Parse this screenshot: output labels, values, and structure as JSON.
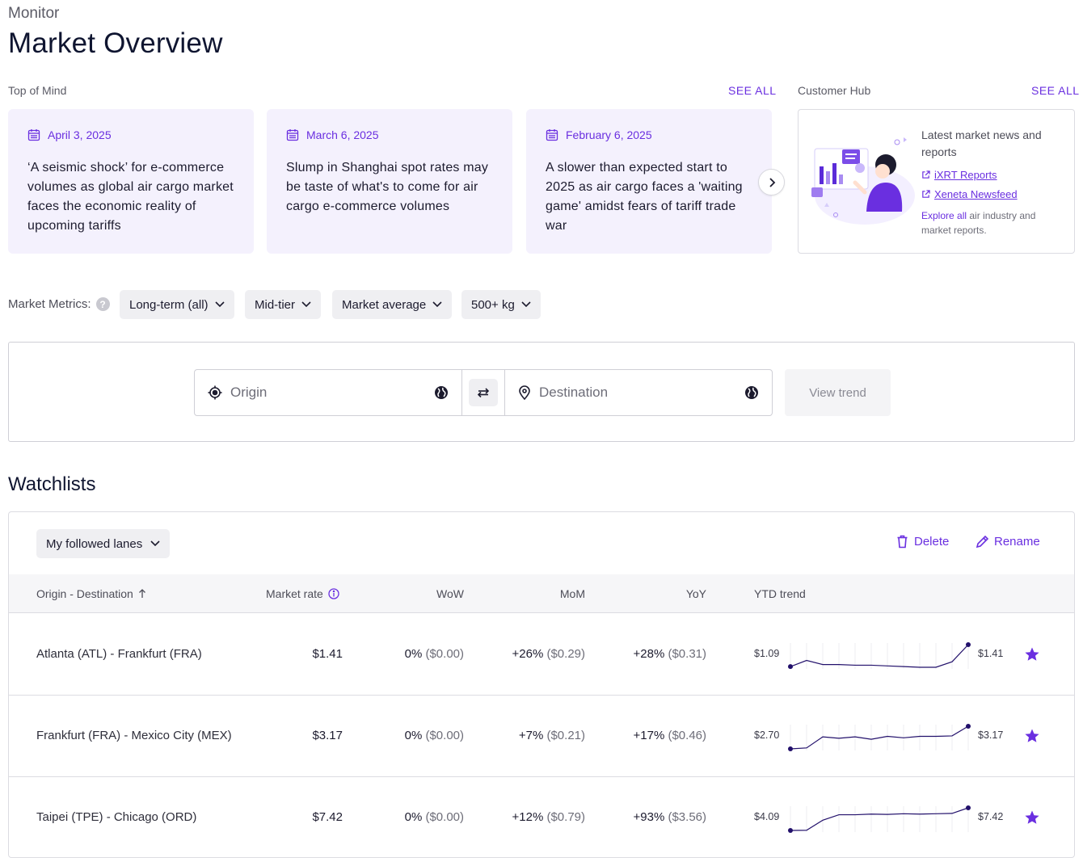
{
  "breadcrumb": "Monitor",
  "title": "Market Overview",
  "top_of_mind": {
    "label": "Top of Mind",
    "see_all": "SEE ALL",
    "cards": [
      {
        "date": "April 3, 2025",
        "text": "‘A seismic shock’ for e-commerce volumes as global air cargo market faces the economic reality of upcoming tariffs"
      },
      {
        "date": "March 6, 2025",
        "text": "Slump in Shanghai spot rates may be taste of what's to come for air cargo e-commerce volumes"
      },
      {
        "date": "February 6, 2025",
        "text": "A slower than expected start to 2025 as air cargo faces a 'waiting game' amidst fears of tariff trade war"
      }
    ]
  },
  "customer_hub": {
    "label": "Customer Hub",
    "see_all": "SEE ALL",
    "heading": "Latest market news and reports",
    "links": [
      "iXRT Reports",
      "Xeneta Newsfeed"
    ],
    "explore_link": "Explore all",
    "explore_rest": " air industry and market reports."
  },
  "metrics": {
    "label": "Market Metrics:",
    "help": "?",
    "filters": [
      "Long-term (all)",
      "Mid-tier",
      "Market average",
      "500+ kg"
    ]
  },
  "search": {
    "origin_placeholder": "Origin",
    "destination_placeholder": "Destination",
    "view_trend": "View trend"
  },
  "watchlists": {
    "title": "Watchlists",
    "selected_list": "My followed lanes",
    "delete_label": "Delete",
    "rename_label": "Rename",
    "columns": [
      "Origin - Destination",
      "Market rate",
      "WoW",
      "MoM",
      "YoY",
      "YTD trend"
    ],
    "rows": [
      {
        "lane": "Atlanta (ATL) - Frankfurt (FRA)",
        "rate": "$1.41",
        "wow": "0%",
        "wow_abs": "($0.00)",
        "mom": "+26%",
        "mom_abs": "($0.29)",
        "yoy": "+28%",
        "yoy_abs": "($0.31)",
        "trend_start": "$1.09",
        "trend_end": "$1.41",
        "trend": [
          1.09,
          1.18,
          1.12,
          1.12,
          1.11,
          1.11,
          1.1,
          1.09,
          1.08,
          1.08,
          1.16,
          1.41
        ]
      },
      {
        "lane": "Frankfurt (FRA) - Mexico City (MEX)",
        "rate": "$3.17",
        "wow": "0%",
        "wow_abs": "($0.00)",
        "mom": "+7%",
        "mom_abs": "($0.21)",
        "yoy": "+17%",
        "yoy_abs": "($0.46)",
        "trend_start": "$2.70",
        "trend_end": "$3.17",
        "trend": [
          2.7,
          2.72,
          2.95,
          2.92,
          2.95,
          2.9,
          2.96,
          2.93,
          2.96,
          2.96,
          2.97,
          3.17
        ]
      },
      {
        "lane": "Taipei (TPE) - Chicago (ORD)",
        "rate": "$7.42",
        "wow": "0%",
        "wow_abs": "($0.00)",
        "mom": "+12%",
        "mom_abs": "($0.79)",
        "yoy": "+93%",
        "yoy_abs": "($3.56)",
        "trend_start": "$4.09",
        "trend_end": "$7.42",
        "trend": [
          4.09,
          4.12,
          5.6,
          6.4,
          6.4,
          6.5,
          6.45,
          6.55,
          6.5,
          6.55,
          6.6,
          7.42
        ]
      }
    ]
  },
  "colors": {
    "accent": "#6a2fe0",
    "trend_line": "#22106b",
    "card_bg": "#f4f1fd"
  }
}
